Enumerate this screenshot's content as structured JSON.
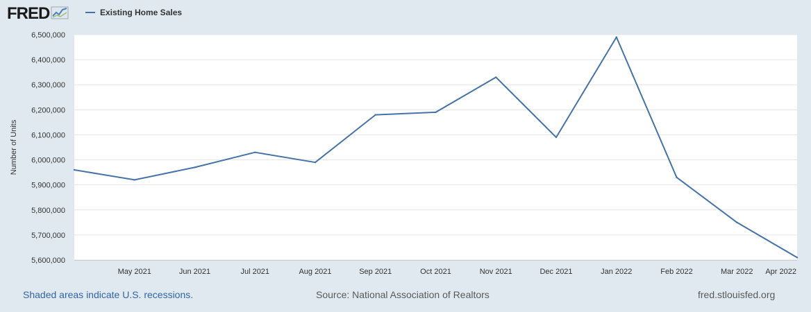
{
  "logo": {
    "text": "FRED"
  },
  "legend": {
    "series_name": "Existing Home Sales"
  },
  "colors": {
    "background": "#e1e9f0",
    "plot_background": "#ffffff",
    "series_line": "#4572a7",
    "gridline": "#e6e6e6"
  },
  "footer": {
    "recession_note": "Shaded areas indicate U.S. recessions.",
    "source": "Source: National Association of Realtors",
    "url": "fred.stlouisfed.org"
  },
  "chart_data": {
    "type": "line",
    "title": "",
    "xlabel": "",
    "ylabel": "Number of Units",
    "ylim": [
      5600000,
      6500000
    ],
    "y_ticks": [
      5600000,
      5700000,
      5800000,
      5900000,
      6000000,
      6100000,
      6200000,
      6300000,
      6400000,
      6500000
    ],
    "y_tick_labels": [
      "5,600,000",
      "5,700,000",
      "5,800,000",
      "5,900,000",
      "6,000,000",
      "6,100,000",
      "6,200,000",
      "6,300,000",
      "6,400,000",
      "6,500,000"
    ],
    "x": [
      "2021-04-01",
      "2021-05-01",
      "2021-06-01",
      "2021-07-01",
      "2021-08-01",
      "2021-09-01",
      "2021-10-01",
      "2021-11-01",
      "2021-12-01",
      "2022-01-01",
      "2022-02-01",
      "2022-03-01",
      "2022-04-01"
    ],
    "x_tick_labels": [
      "",
      "May 2021",
      "Jun 2021",
      "Jul 2021",
      "Aug 2021",
      "Sep 2021",
      "Oct 2021",
      "Nov 2021",
      "Dec 2021",
      "Jan 2022",
      "Feb 2022",
      "Mar 2022",
      "Apr 2022"
    ],
    "grid": true,
    "legend_position": "top-left",
    "series": [
      {
        "name": "Existing Home Sales",
        "values": [
          5960000,
          5920000,
          5970000,
          6030000,
          5990000,
          6180000,
          6190000,
          6330000,
          6090000,
          6490000,
          5930000,
          5750000,
          5610000
        ]
      }
    ]
  }
}
